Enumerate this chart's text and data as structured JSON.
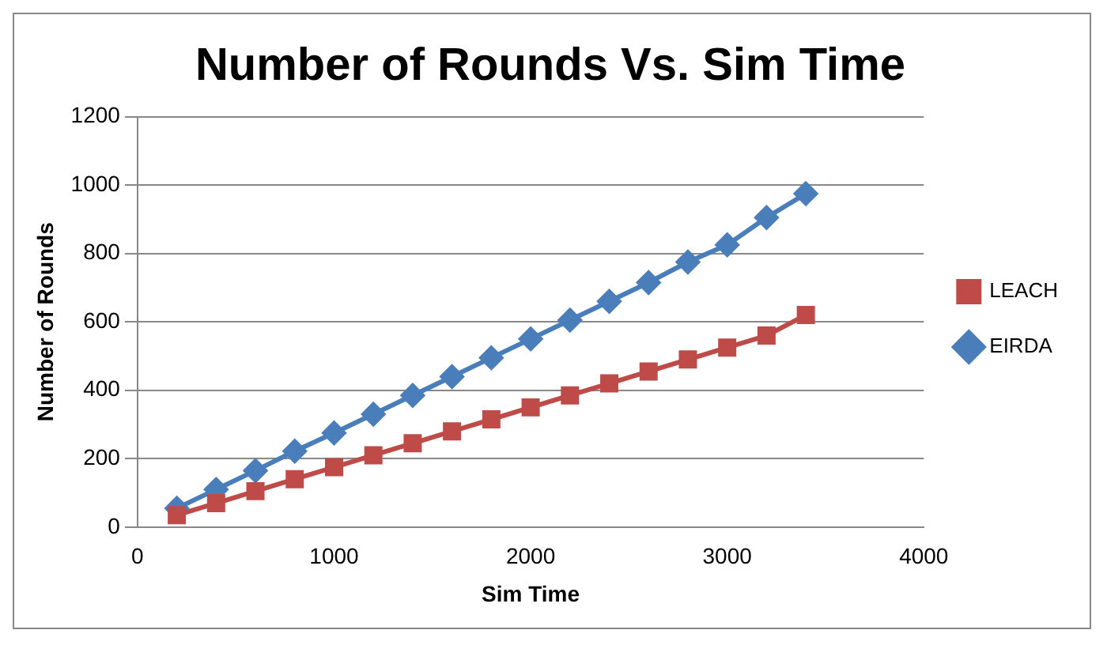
{
  "chart_data": {
    "type": "line",
    "title": "Number of Rounds Vs. Sim Time",
    "xlabel": "Sim Time",
    "ylabel": "Number of Rounds",
    "x": [
      200,
      400,
      600,
      800,
      1000,
      1200,
      1400,
      1600,
      1800,
      2000,
      2200,
      2400,
      2600,
      2800,
      3000,
      3200,
      3400
    ],
    "series": [
      {
        "name": "EIRDA",
        "color": "#4a7ebb",
        "marker": "diamond",
        "values": [
          55,
          110,
          165,
          222,
          275,
          330,
          385,
          440,
          495,
          550,
          605,
          660,
          715,
          775,
          825,
          905,
          975
        ]
      },
      {
        "name": "LEACH",
        "color": "#be4b48",
        "marker": "square",
        "values": [
          35,
          70,
          105,
          140,
          175,
          210,
          245,
          280,
          315,
          350,
          385,
          420,
          455,
          490,
          525,
          560,
          620
        ]
      }
    ],
    "xlim": [
      0,
      4000
    ],
    "xticks": [
      0,
      1000,
      2000,
      3000,
      4000
    ],
    "ylim": [
      0,
      1200
    ],
    "yticks": [
      0,
      200,
      400,
      600,
      800,
      1000,
      1200
    ],
    "grid": "y",
    "legend": "right"
  }
}
